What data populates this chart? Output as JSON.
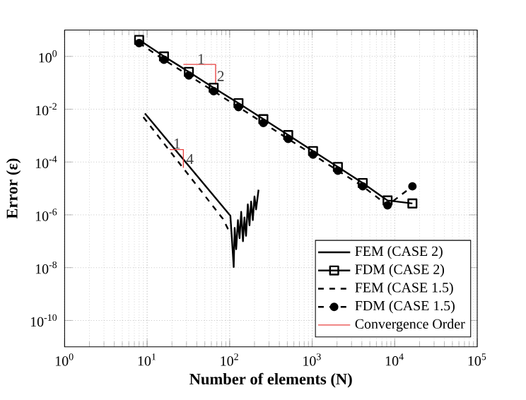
{
  "chart_data": {
    "type": "line",
    "xlabel": "Number of elements (N)",
    "ylabel": "Error (ε)",
    "log": "xy",
    "grid": true,
    "legend": "bottom right",
    "xlim": [
      1,
      100000
    ],
    "ylim": [
      1e-11,
      10
    ],
    "xticks": [
      {
        "value": 1,
        "label": "10$^{0}$"
      },
      {
        "value": 10,
        "label": "10$^{1}$"
      },
      {
        "value": 100,
        "label": "10$^{2}$"
      },
      {
        "value": 1000,
        "label": "10$^{3}$"
      },
      {
        "value": 10000,
        "label": "10$^{4}$"
      },
      {
        "value": 100000,
        "label": "10$^{5}$"
      }
    ],
    "yticks": [
      {
        "value": 1,
        "label": "10$^{0}$"
      },
      {
        "value": 0.01,
        "label": "10$^{-2}$"
      },
      {
        "value": 0.0001,
        "label": "10$^{-4}$"
      },
      {
        "value": 1e-06,
        "label": "10$^{-6}$"
      },
      {
        "value": 1e-08,
        "label": "10$^{-8}$"
      },
      {
        "value": 1e-10,
        "label": "10$^{-10}$"
      }
    ],
    "series": [
      {
        "name": "FEM (CASE 2)",
        "color": "#000000",
        "marker": "none",
        "line_style": "solid",
        "x": [
          9.4,
          102,
          107,
          112,
          115,
          120,
          126,
          132,
          138,
          145,
          151,
          158,
          166,
          174,
          182,
          191,
          200,
          209,
          224
        ],
        "values": [
          0.0069,
          9.3e-07,
          1e-07,
          1.05e-08,
          3.2e-07,
          5e-08,
          6.3e-07,
          1.3e-07,
          1.3e-06,
          1e-07,
          7.9e-07,
          1.6e-07,
          2.5e-06,
          4e-07,
          3.2e-06,
          6.3e-07,
          5e-06,
          1.6e-06,
          8.9e-06
        ]
      },
      {
        "name": "FDM (CASE 2)",
        "color": "#000000",
        "marker": "square",
        "line_style": "solid",
        "x": [
          8,
          16,
          32,
          64,
          128,
          256,
          512,
          1024,
          2048,
          4096,
          8192,
          16384
        ],
        "values": [
          4.2,
          1.0,
          0.26,
          0.065,
          0.017,
          0.0042,
          0.00105,
          0.00026,
          6.5e-05,
          1.6e-05,
          3.5e-06,
          2.7e-06
        ]
      },
      {
        "name": "FEM (CASE 1.5)",
        "color": "#000000",
        "marker": "none",
        "line_style": "dashed",
        "x": [
          9,
          83,
          95,
          100
        ],
        "values": [
          0.005,
          7e-07,
          3e-07,
          2.5e-07
        ]
      },
      {
        "name": "FDM (CASE 1.5)",
        "color": "#000000",
        "marker": "circle",
        "line_style": "dashed",
        "x": [
          8,
          16,
          32,
          64,
          128,
          256,
          512,
          1024,
          2048,
          4096,
          8192,
          16384
        ],
        "values": [
          3.2,
          0.75,
          0.19,
          0.048,
          0.012,
          0.003,
          0.00075,
          0.00019,
          4.7e-05,
          1.2e-05,
          2.3e-06,
          1.2e-05
        ]
      },
      {
        "name": "Convergence Order",
        "color": "#e8403f",
        "marker": "none",
        "line_style": "solid",
        "x": [
          27.5,
          67.6,
          67.6,
          50,
          18.8,
          27.5,
          27.5
        ],
        "values": [
          0.5,
          0.5,
          0.087,
          null,
          0.000295,
          0.000295,
          6e-05
        ]
      }
    ],
    "annotations": [
      {
        "text": "1",
        "x": 45,
        "y": 0.8
      },
      {
        "text": "2",
        "x": 78,
        "y": 0.18
      },
      {
        "text": "1",
        "x": 23,
        "y": 0.0005
      },
      {
        "text": "4",
        "x": 33,
        "y": 0.00013
      }
    ]
  }
}
